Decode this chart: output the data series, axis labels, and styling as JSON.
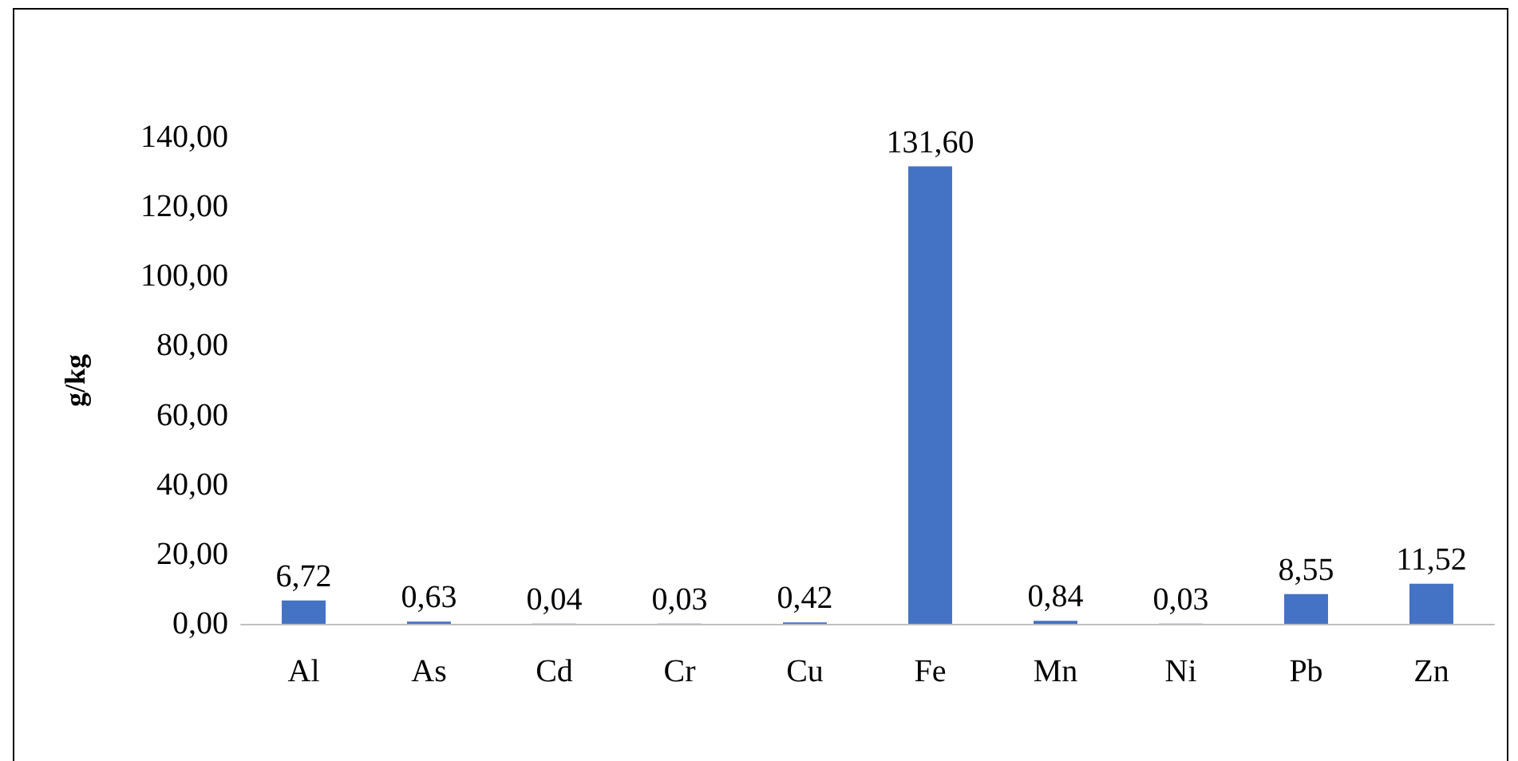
{
  "chart_data": {
    "type": "bar",
    "ylabel": "g/kg",
    "categories": [
      "Al",
      "As",
      "Cd",
      "Cr",
      "Cu",
      "Fe",
      "Mn",
      "Ni",
      "Pb",
      "Zn"
    ],
    "values": [
      6.72,
      0.63,
      0.04,
      0.03,
      0.42,
      131.6,
      0.84,
      0.03,
      8.55,
      11.52
    ],
    "value_labels": [
      "6,72",
      "0,63",
      "0,04",
      "0,03",
      "0,42",
      "131,60",
      "0,84",
      "0,03",
      "8,55",
      "11,52"
    ],
    "color": "#4472c4",
    "ylim": [
      0,
      140
    ],
    "yticks": [
      {
        "value": 0,
        "label": "0,00"
      },
      {
        "value": 20,
        "label": "20,00"
      },
      {
        "value": 40,
        "label": "40,00"
      },
      {
        "value": 60,
        "label": "60,00"
      },
      {
        "value": 80,
        "label": "80,00"
      },
      {
        "value": 100,
        "label": "100,00"
      },
      {
        "value": 120,
        "label": "120,00"
      },
      {
        "value": 140,
        "label": "140,00"
      }
    ],
    "grid": false
  }
}
